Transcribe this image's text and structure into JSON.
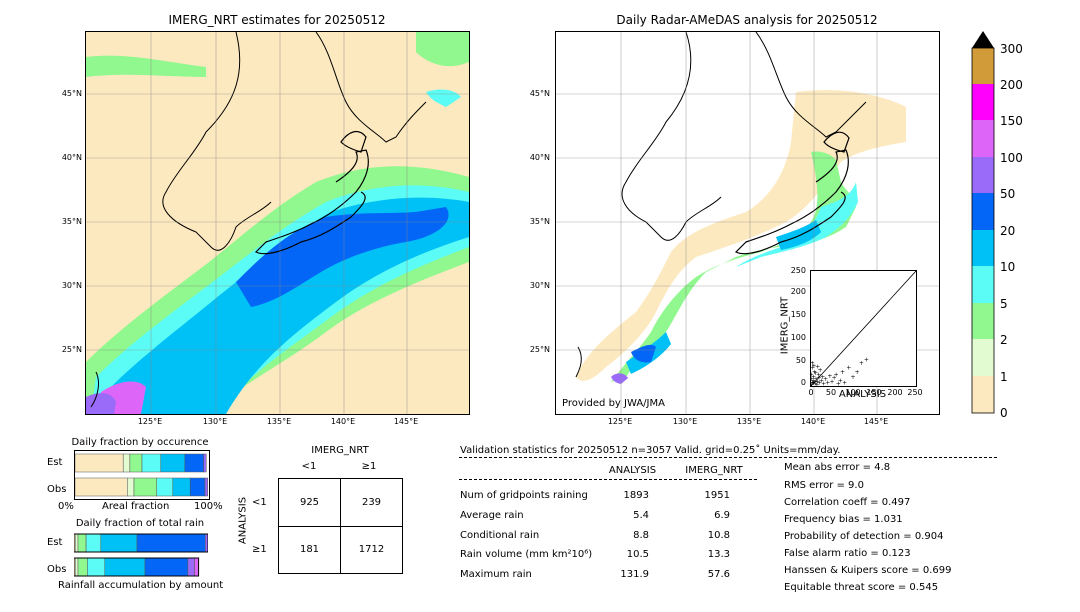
{
  "colors": {
    "c0_1": "#fde9bf",
    "c1_2": "#e2fbd0",
    "c2_5": "#90f88e",
    "c5_10": "#5cfcf6",
    "c10_20": "#00c1f6",
    "c20_50": "#0366f7",
    "c50_100": "#9a6bf8",
    "c100_150": "#dd66f8",
    "c150_200": "#fe00fb",
    "c200_300": "#d29b39"
  },
  "map_left": {
    "title": "IMERG_NRT estimates for 20250512",
    "lat_labels": [
      "45°N",
      "40°N",
      "35°N",
      "30°N",
      "25°N"
    ],
    "lon_labels": [
      "125°E",
      "130°E",
      "135°E",
      "140°E",
      "145°E"
    ]
  },
  "map_right": {
    "title": "Daily Radar-AMeDAS analysis for 20250512",
    "lat_labels": [
      "45°N",
      "40°N",
      "35°N",
      "30°N",
      "25°N"
    ],
    "lon_labels": [
      "125°E",
      "130°E",
      "135°E",
      "140°E",
      "145°E"
    ],
    "credit": "Provided by JWA/JMA"
  },
  "scatter": {
    "xlabel": "ANALYSIS",
    "ylabel": "IMERG_NRT",
    "ticks": [
      "0",
      "50",
      "100",
      "150",
      "200",
      "250"
    ]
  },
  "colorbar": {
    "labels": [
      "0",
      "1",
      "2",
      "5",
      "10",
      "20",
      "50",
      "100",
      "150",
      "200",
      "300"
    ]
  },
  "fraction_occurrence": {
    "title": "Daily fraction by occurence",
    "row_est": "Est",
    "row_obs": "Obs",
    "axis_left": "0%",
    "axis_mid": "Areal fraction",
    "axis_right": "100%"
  },
  "fraction_total": {
    "title": "Daily fraction of total rain",
    "row_est": "Est",
    "row_obs": "Obs",
    "caption": "Rainfall accumulation by amount"
  },
  "contingency": {
    "title": "IMERG_NRT",
    "col_lt": "<1",
    "col_ge": "≥1",
    "row_label": "ANALYSIS",
    "row_lt": "<1",
    "row_ge": "≥1",
    "a": "925",
    "b": "239",
    "c": "181",
    "d": "1712"
  },
  "validation": {
    "header": "Validation statistics for 20250512  n=3057 Valid. grid=0.25˚ Units=mm/day.",
    "col_analysis": "ANALYSIS",
    "col_imerg": "IMERG_NRT",
    "rows": [
      {
        "label": "Num of gridpoints raining",
        "analysis": "1893",
        "imerg": "1951"
      },
      {
        "label": "Average rain",
        "analysis": "5.4",
        "imerg": "6.9"
      },
      {
        "label": "Conditional rain",
        "analysis": "8.8",
        "imerg": "10.8"
      },
      {
        "label": "Rain volume (mm km²10⁶)",
        "analysis": "10.5",
        "imerg": "13.3"
      },
      {
        "label": "Maximum rain",
        "analysis": "131.9",
        "imerg": "57.6"
      }
    ],
    "scores": [
      "Mean abs error =    4.8",
      "RMS error =    9.0",
      "Correlation coeff =  0.497",
      "Frequency bias =  1.031",
      "Probability of detection =  0.904",
      "False alarm ratio =  0.123",
      "Hanssen & Kuipers score =  0.699",
      "Equitable threat score =  0.545"
    ]
  },
  "chart_data": [
    {
      "type": "scatter",
      "xlabel": "ANALYSIS",
      "ylabel": "IMERG_NRT",
      "xlim": [
        0,
        250
      ],
      "ylim": [
        0,
        250
      ],
      "points": [
        [
          2,
          3
        ],
        [
          3,
          8
        ],
        [
          5,
          12
        ],
        [
          6,
          20
        ],
        [
          8,
          30
        ],
        [
          10,
          5
        ],
        [
          12,
          15
        ],
        [
          4,
          40
        ],
        [
          7,
          45
        ],
        [
          15,
          10
        ],
        [
          18,
          25
        ],
        [
          20,
          8
        ],
        [
          22,
          35
        ],
        [
          25,
          12
        ],
        [
          28,
          20
        ],
        [
          30,
          5
        ],
        [
          35,
          15
        ],
        [
          40,
          8
        ],
        [
          45,
          22
        ],
        [
          50,
          10
        ],
        [
          55,
          18
        ],
        [
          60,
          25
        ],
        [
          65,
          5
        ],
        [
          70,
          12
        ],
        [
          75,
          30
        ],
        [
          80,
          8
        ],
        [
          90,
          40
        ],
        [
          100,
          20
        ],
        [
          110,
          30
        ],
        [
          120,
          50
        ],
        [
          131.9,
          57.6
        ],
        [
          3,
          50
        ],
        [
          1,
          25
        ],
        [
          2,
          15
        ],
        [
          6,
          6
        ],
        [
          9,
          9
        ],
        [
          14,
          3
        ],
        [
          16,
          42
        ],
        [
          11,
          28
        ],
        [
          19,
          18
        ]
      ]
    },
    {
      "type": "bar",
      "title": "Daily fraction by occurence",
      "categories": [
        "Est",
        "Obs"
      ],
      "series": [
        {
          "color": "#fde9bf",
          "values": [
            0.36,
            0.39
          ]
        },
        {
          "color": "#e2fbd0",
          "values": [
            0.05,
            0.05
          ]
        },
        {
          "color": "#90f88e",
          "values": [
            0.09,
            0.17
          ]
        },
        {
          "color": "#5cfcf6",
          "values": [
            0.14,
            0.12
          ]
        },
        {
          "color": "#00c1f6",
          "values": [
            0.18,
            0.13
          ]
        },
        {
          "color": "#0366f7",
          "values": [
            0.14,
            0.11
          ]
        },
        {
          "color": "#9a6bf8",
          "values": [
            0.02,
            0.02
          ]
        }
      ]
    },
    {
      "type": "bar",
      "title": "Daily fraction of total rain",
      "categories": [
        "Est",
        "Obs"
      ],
      "series": [
        {
          "color": "#fde9bf",
          "values": [
            0.01,
            0.01
          ]
        },
        {
          "color": "#e2fbd0",
          "values": [
            0.02,
            0.02
          ]
        },
        {
          "color": "#90f88e",
          "values": [
            0.06,
            0.07
          ]
        },
        {
          "color": "#5cfcf6",
          "values": [
            0.11,
            0.13
          ]
        },
        {
          "color": "#00c1f6",
          "values": [
            0.27,
            0.3
          ]
        },
        {
          "color": "#0366f7",
          "values": [
            0.51,
            0.32
          ]
        },
        {
          "color": "#9a6bf8",
          "values": [
            0.02,
            0.05
          ]
        },
        {
          "color": "#dd66f8",
          "values": [
            0.0,
            0.03
          ]
        }
      ]
    }
  ]
}
